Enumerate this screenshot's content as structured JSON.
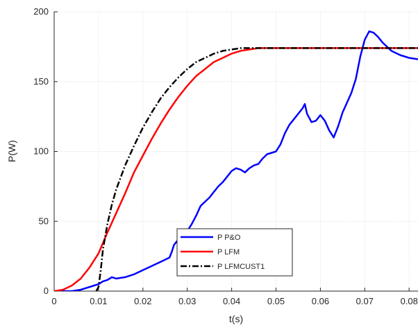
{
  "chart_data": {
    "type": "line",
    "xlabel": "t(s)",
    "ylabel": "P(W)",
    "xlim": [
      0,
      0.082
    ],
    "ylim": [
      0,
      200
    ],
    "xticks": [
      0,
      0.01,
      0.02,
      0.03,
      0.04,
      0.05,
      0.06,
      0.07,
      0.08
    ],
    "xtick_labels": [
      "0",
      "0.01",
      "0.02",
      "0.03",
      "0.04",
      "0.05",
      "0.06",
      "0.07",
      "0.08"
    ],
    "yticks": [
      0,
      50,
      100,
      150,
      200
    ],
    "ytick_labels": [
      "0",
      "50",
      "100",
      "150",
      "200"
    ],
    "grid": true,
    "legend_position": "bottom-center",
    "series": [
      {
        "name": "P P&O",
        "color": "#0000ff",
        "style": "solid",
        "x": [
          0,
          0.002,
          0.004,
          0.006,
          0.008,
          0.01,
          0.011,
          0.012,
          0.013,
          0.014,
          0.016,
          0.018,
          0.02,
          0.022,
          0.024,
          0.026,
          0.0265,
          0.027,
          0.028,
          0.029,
          0.03,
          0.031,
          0.032,
          0.033,
          0.034,
          0.035,
          0.036,
          0.037,
          0.038,
          0.039,
          0.04,
          0.041,
          0.042,
          0.043,
          0.044,
          0.045,
          0.046,
          0.047,
          0.048,
          0.049,
          0.05,
          0.051,
          0.052,
          0.053,
          0.054,
          0.055,
          0.056,
          0.0565,
          0.057,
          0.058,
          0.059,
          0.06,
          0.061,
          0.062,
          0.063,
          0.064,
          0.065,
          0.066,
          0.067,
          0.068,
          0.069,
          0.07,
          0.071,
          0.072,
          0.073,
          0.074,
          0.075,
          0.076,
          0.078,
          0.08,
          0.082
        ],
        "y": [
          0,
          0,
          0,
          1,
          3,
          5,
          7,
          8,
          10,
          9,
          10,
          12,
          15,
          18,
          21,
          24,
          28,
          33,
          37,
          40,
          43,
          48,
          54,
          61,
          64,
          67,
          71,
          75,
          78,
          82,
          86,
          88,
          87,
          85,
          88,
          90,
          91,
          95,
          98,
          99,
          100,
          105,
          113,
          119,
          123,
          127,
          131,
          134,
          127,
          121,
          122,
          126,
          122,
          115,
          110,
          118,
          128,
          135,
          142,
          152,
          168,
          180,
          186,
          185,
          182,
          178,
          175,
          172,
          169,
          167,
          166
        ]
      },
      {
        "name": "P LFM",
        "color": "#ff0000",
        "style": "solid",
        "x": [
          0,
          0.002,
          0.004,
          0.006,
          0.008,
          0.01,
          0.012,
          0.014,
          0.016,
          0.018,
          0.02,
          0.022,
          0.024,
          0.026,
          0.028,
          0.03,
          0.032,
          0.034,
          0.036,
          0.038,
          0.04,
          0.042,
          0.044,
          0.046,
          0.048,
          0.05,
          0.055,
          0.06,
          0.065,
          0.07,
          0.075,
          0.08,
          0.082
        ],
        "y": [
          0,
          1,
          4,
          9,
          17,
          27,
          42,
          56,
          70,
          85,
          97,
          109,
          120,
          130,
          139,
          147,
          154,
          159,
          164,
          167,
          170,
          172,
          173,
          174,
          174,
          174,
          174,
          174,
          174,
          174,
          174,
          174,
          174
        ]
      },
      {
        "name": "P LFMCUST1",
        "color": "#000000",
        "style": "dashdot",
        "x": [
          0.0095,
          0.01,
          0.0105,
          0.011,
          0.012,
          0.013,
          0.014,
          0.016,
          0.018,
          0.02,
          0.022,
          0.024,
          0.026,
          0.028,
          0.03,
          0.032,
          0.034,
          0.036,
          0.038,
          0.04,
          0.042,
          0.044,
          0.046,
          0.048,
          0.05,
          0.055,
          0.06,
          0.065,
          0.07,
          0.075,
          0.08,
          0.082
        ],
        "y": [
          0,
          3,
          15,
          30,
          48,
          62,
          73,
          90,
          104,
          117,
          128,
          138,
          146,
          153,
          159,
          164,
          167,
          170,
          172,
          173,
          174,
          174,
          174,
          174,
          174,
          174,
          174,
          174,
          174,
          174,
          174,
          174
        ]
      }
    ]
  }
}
